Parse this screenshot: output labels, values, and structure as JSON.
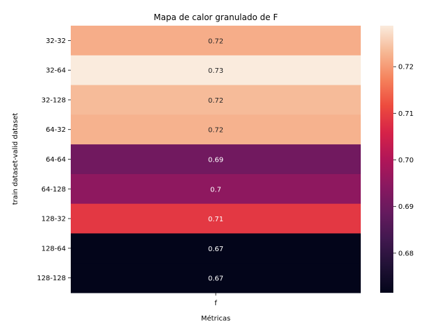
{
  "chart_data": {
    "type": "heatmap",
    "title": "Mapa de calor granulado de F",
    "xlabel": "Métricas",
    "ylabel": "train dataset-valid dataset",
    "x_categories": [
      "f"
    ],
    "y_categories": [
      "32-32",
      "32-64",
      "32-128",
      "64-32",
      "64-64",
      "64-128",
      "128-32",
      "128-64",
      "128-128"
    ],
    "values": [
      0.722,
      0.7288,
      0.7235,
      0.7225,
      0.6905,
      0.695,
      0.709,
      0.6715,
      0.6715
    ],
    "value_labels": [
      "0.72",
      "0.73",
      "0.72",
      "0.72",
      "0.69",
      "0.7",
      "0.71",
      "0.67",
      "0.67"
    ],
    "colormap": "rocket",
    "colorbar": {
      "range": [
        0.6715,
        0.7288
      ],
      "ticks": [
        0.68,
        0.69,
        0.7,
        0.71,
        0.72
      ],
      "tick_labels": [
        "0.68",
        "0.69",
        "0.70",
        "0.71",
        "0.72"
      ]
    },
    "annotation_colors": {
      "on_dark": "#ffffff",
      "on_light": "#262626"
    }
  }
}
